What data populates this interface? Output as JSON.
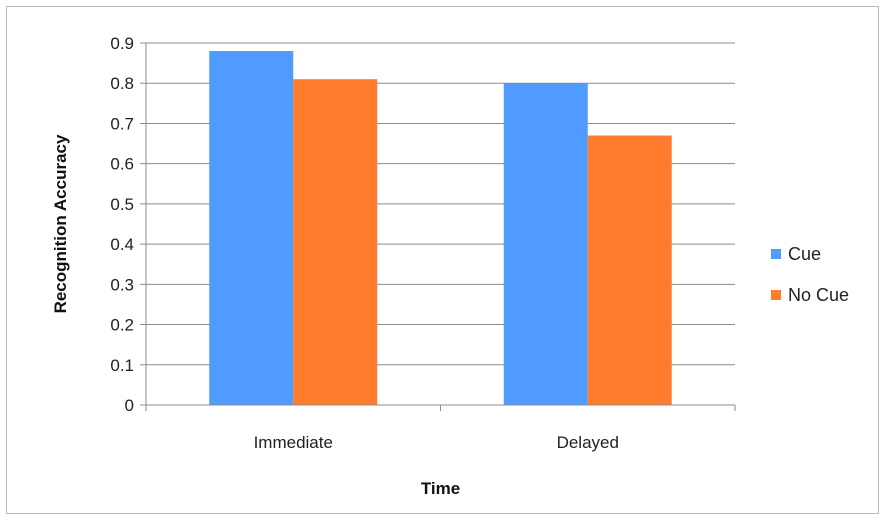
{
  "chart_data": {
    "type": "bar",
    "title": "",
    "xlabel": "Time",
    "ylabel": "Recognition Accuracy",
    "categories": [
      "Immediate",
      "Delayed"
    ],
    "series": [
      {
        "name": "Cue",
        "values": [
          0.88,
          0.8
        ],
        "color": "#4f9bff"
      },
      {
        "name": "No Cue",
        "values": [
          0.81,
          0.67
        ],
        "color": "#ff7b2e"
      }
    ],
    "ylim": [
      0,
      0.9
    ],
    "yticks": [
      "0",
      "0.1",
      "0.2",
      "0.3",
      "0.4",
      "0.5",
      "0.6",
      "0.7",
      "0.8",
      "0.9"
    ],
    "grid": true,
    "legend_position": "right"
  }
}
